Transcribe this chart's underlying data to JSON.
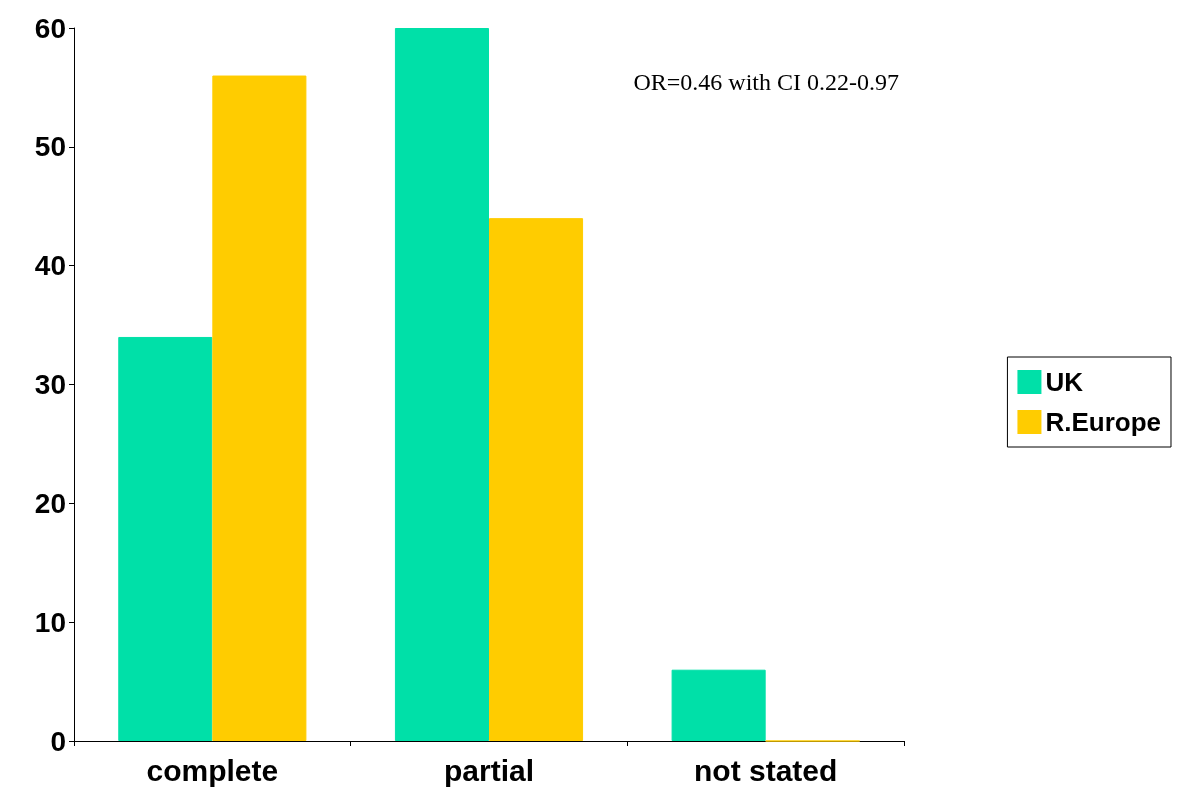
{
  "chart_data": {
    "type": "bar",
    "categories": [
      "complete",
      "partial",
      "not stated"
    ],
    "series": [
      {
        "name": "UK",
        "color": "#00e0a8",
        "values": [
          34,
          60,
          6
        ]
      },
      {
        "name": "R.Europe",
        "color": "#ffcc00",
        "values": [
          56,
          44,
          0
        ]
      }
    ],
    "ylim": [
      0,
      60
    ],
    "yticks": [
      0,
      10,
      20,
      30,
      40,
      50,
      60
    ],
    "grid": false,
    "legend": "right",
    "annotations": [
      "OR=0.46 with CI 0.22-0.97"
    ]
  }
}
